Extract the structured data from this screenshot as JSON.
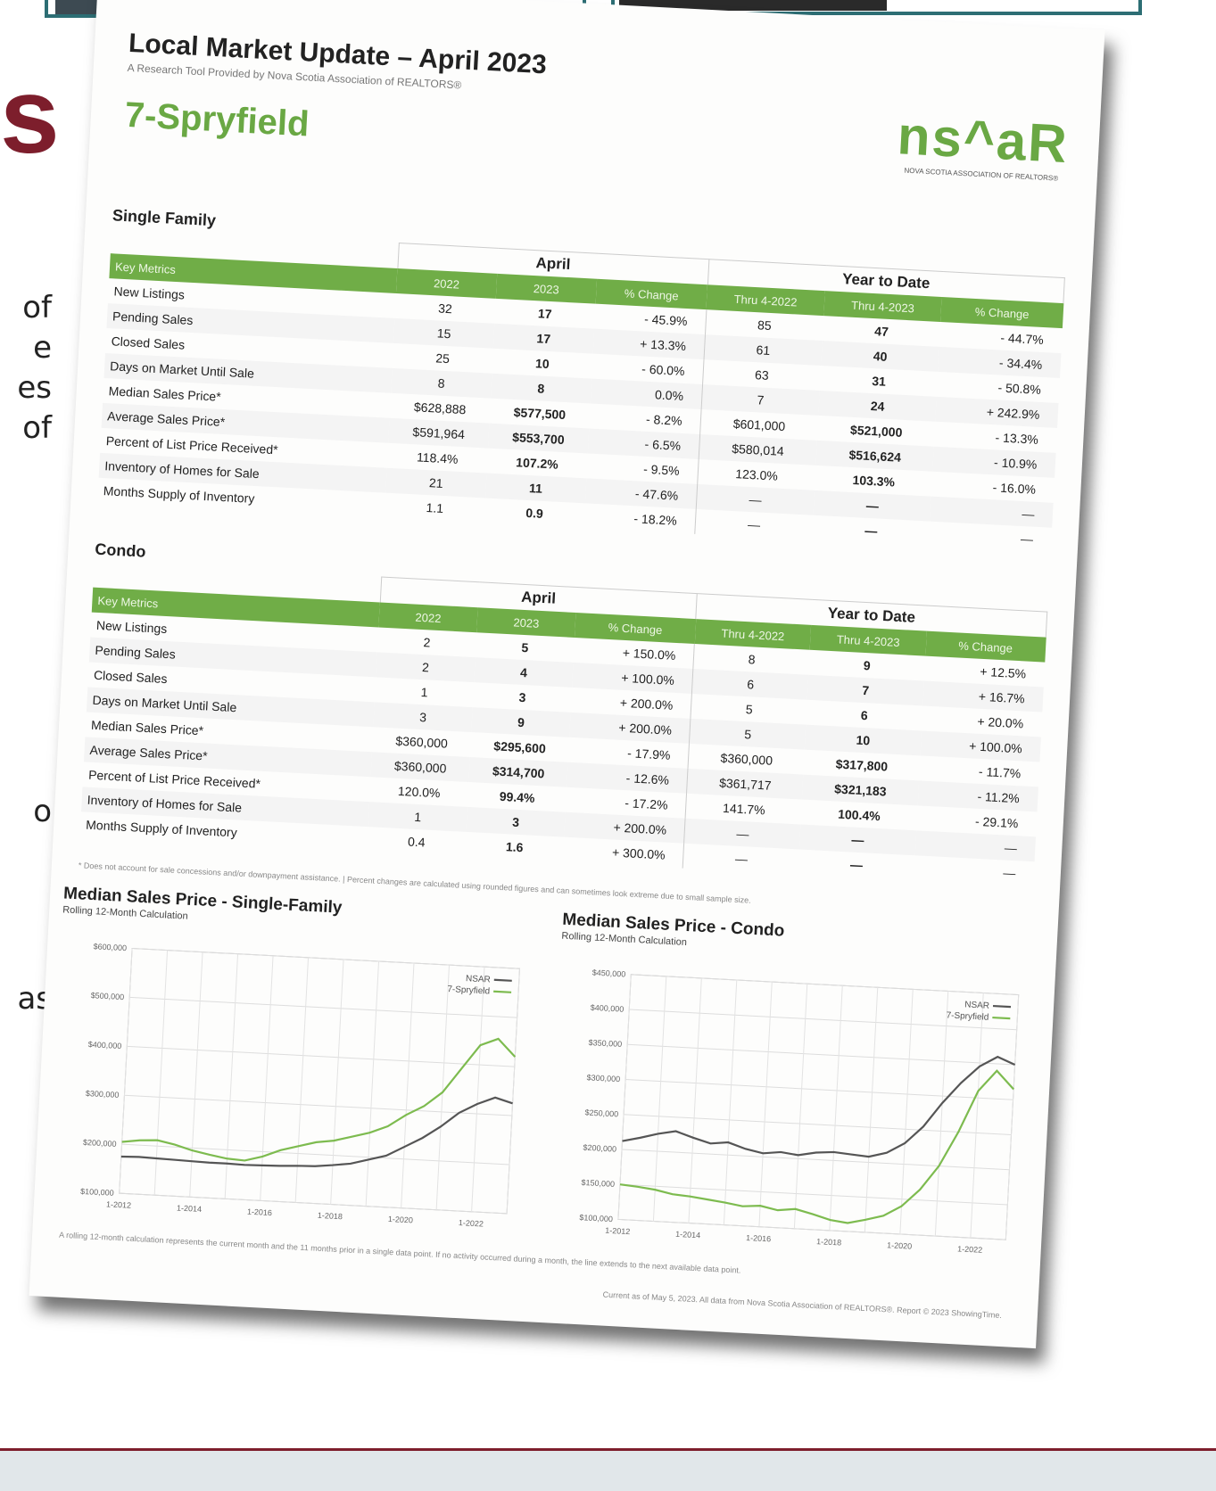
{
  "background": {
    "heading_fragment": "s",
    "text_fragments": [
      "of",
      "e",
      "es",
      "of",
      "o",
      "as"
    ]
  },
  "document": {
    "title": "Local Market Update – April 2023",
    "subtitle": "A Research Tool Provided by Nova Scotia Association of REALTORS®",
    "area": "7-Spryfield",
    "logo": {
      "mark": "ns^aR",
      "caption": "NOVA SCOTIA ASSOCIATION OF REALTORS®"
    },
    "tables": [
      {
        "title": "Single Family",
        "key_label": "Key Metrics",
        "group_labels": [
          "April",
          "Year to Date"
        ],
        "columns": [
          "2022",
          "2023",
          "% Change",
          "Thru 4-2022",
          "Thru 4-2023",
          "% Change"
        ],
        "rows": [
          {
            "label": "New Listings",
            "cells": [
              "32",
              "17",
              "- 45.9%",
              "85",
              "47",
              "- 44.7%"
            ]
          },
          {
            "label": "Pending Sales",
            "cells": [
              "15",
              "17",
              "+ 13.3%",
              "61",
              "40",
              "- 34.4%"
            ]
          },
          {
            "label": "Closed Sales",
            "cells": [
              "25",
              "10",
              "- 60.0%",
              "63",
              "31",
              "- 50.8%"
            ]
          },
          {
            "label": "Days on Market Until Sale",
            "cells": [
              "8",
              "8",
              "0.0%",
              "7",
              "24",
              "+ 242.9%"
            ]
          },
          {
            "label": "Median Sales Price*",
            "cells": [
              "$628,888",
              "$577,500",
              "- 8.2%",
              "$601,000",
              "$521,000",
              "- 13.3%"
            ]
          },
          {
            "label": "Average Sales Price*",
            "cells": [
              "$591,964",
              "$553,700",
              "- 6.5%",
              "$580,014",
              "$516,624",
              "- 10.9%"
            ]
          },
          {
            "label": "Percent of List Price Received*",
            "cells": [
              "118.4%",
              "107.2%",
              "- 9.5%",
              "123.0%",
              "103.3%",
              "- 16.0%"
            ]
          },
          {
            "label": "Inventory of Homes for Sale",
            "cells": [
              "21",
              "11",
              "- 47.6%",
              "—",
              "—",
              "—"
            ]
          },
          {
            "label": "Months Supply of Inventory",
            "cells": [
              "1.1",
              "0.9",
              "- 18.2%",
              "—",
              "—",
              "—"
            ]
          }
        ]
      },
      {
        "title": "Condo",
        "key_label": "Key Metrics",
        "group_labels": [
          "April",
          "Year to Date"
        ],
        "columns": [
          "2022",
          "2023",
          "% Change",
          "Thru 4-2022",
          "Thru 4-2023",
          "% Change"
        ],
        "rows": [
          {
            "label": "New Listings",
            "cells": [
              "2",
              "5",
              "+ 150.0%",
              "8",
              "9",
              "+ 12.5%"
            ]
          },
          {
            "label": "Pending Sales",
            "cells": [
              "2",
              "4",
              "+ 100.0%",
              "6",
              "7",
              "+ 16.7%"
            ]
          },
          {
            "label": "Closed Sales",
            "cells": [
              "1",
              "3",
              "+ 200.0%",
              "5",
              "6",
              "+ 20.0%"
            ]
          },
          {
            "label": "Days on Market Until Sale",
            "cells": [
              "3",
              "9",
              "+ 200.0%",
              "5",
              "10",
              "+ 100.0%"
            ]
          },
          {
            "label": "Median Sales Price*",
            "cells": [
              "$360,000",
              "$295,600",
              "- 17.9%",
              "$360,000",
              "$317,800",
              "- 11.7%"
            ]
          },
          {
            "label": "Average Sales Price*",
            "cells": [
              "$360,000",
              "$314,700",
              "- 12.6%",
              "$361,717",
              "$321,183",
              "- 11.2%"
            ]
          },
          {
            "label": "Percent of List Price Received*",
            "cells": [
              "120.0%",
              "99.4%",
              "- 17.2%",
              "141.7%",
              "100.4%",
              "- 29.1%"
            ]
          },
          {
            "label": "Inventory of Homes for Sale",
            "cells": [
              "1",
              "3",
              "+ 200.0%",
              "—",
              "—",
              "—"
            ]
          },
          {
            "label": "Months Supply of Inventory",
            "cells": [
              "0.4",
              "1.6",
              "+ 300.0%",
              "—",
              "—",
              "—"
            ]
          }
        ]
      }
    ],
    "footnote": "* Does not account for sale concessions and/or downpayment assistance. | Percent changes are calculated using rounded figures and can sometimes look extreme due to small sample size.",
    "charts": [
      {
        "type": "line",
        "title": "Median Sales Price - Single-Family",
        "subtitle": "Rolling 12-Month Calculation",
        "categories": [
          "1-2012",
          null,
          null,
          null,
          "1-2014",
          null,
          null,
          null,
          "1-2016",
          null,
          null,
          null,
          "1-2018",
          null,
          null,
          null,
          "1-2020",
          null,
          null,
          null,
          "1-2022",
          null,
          null
        ],
        "series": [
          {
            "name": "NSAR",
            "color": "#555555",
            "values": [
              175000,
              176000,
              175000,
              174000,
              173000,
              172000,
              172000,
              171000,
              172000,
              173000,
              175000,
              176000,
              180000,
              185000,
              195000,
              205000,
              225000,
              245000,
              270000,
              300000,
              320000,
              335000,
              325000
            ]
          },
          {
            "name": "7-Spryfield",
            "color": "#7dbb4f",
            "values": [
              205000,
              210000,
              212000,
              205000,
              195000,
              188000,
              182000,
              180000,
              190000,
              205000,
              215000,
              225000,
              230000,
              240000,
              250000,
              265000,
              290000,
              310000,
              340000,
              390000,
              440000,
              455000,
              420000
            ]
          }
        ],
        "ylim": [
          100000,
          600000
        ],
        "yticks": [
          {
            "value": 100000,
            "label": "$100,000"
          },
          {
            "value": 200000,
            "label": "$200,000"
          },
          {
            "value": 300000,
            "label": "$300,000"
          },
          {
            "value": 400000,
            "label": "$400,000"
          },
          {
            "value": 500000,
            "label": "$500,000"
          },
          {
            "value": 600000,
            "label": "$600,000"
          }
        ],
        "grid": true
      },
      {
        "type": "line",
        "title": "Median Sales Price - Condo",
        "subtitle": "Rolling 12-Month Calculation",
        "categories": [
          "1-2012",
          null,
          null,
          null,
          "1-2014",
          null,
          null,
          null,
          "1-2016",
          null,
          null,
          null,
          "1-2018",
          null,
          null,
          null,
          "1-2020",
          null,
          null,
          null,
          "1-2022",
          null,
          null
        ],
        "series": [
          {
            "name": "NSAR",
            "color": "#555555",
            "values": [
              212000,
              218000,
              225000,
              230000,
              222000,
              215000,
              218000,
              210000,
              205000,
              208000,
              205000,
              210000,
              212000,
              210000,
              208000,
              215000,
              230000,
              255000,
              290000,
              320000,
              345000,
              360000,
              350000
            ]
          },
          {
            "name": "7-Spryfield",
            "color": "#7dbb4f",
            "values": [
              150000,
              148000,
              145000,
              140000,
              138000,
              135000,
              132000,
              128000,
              130000,
              125000,
              128000,
              122000,
              115000,
              112000,
              118000,
              125000,
              140000,
              165000,
              200000,
              250000,
              310000,
              340000,
              315000
            ]
          }
        ],
        "ylim": [
          100000,
          450000
        ],
        "yticks": [
          {
            "value": 100000,
            "label": "$100,000"
          },
          {
            "value": 150000,
            "label": "$150,000"
          },
          {
            "value": 200000,
            "label": "$200,000"
          },
          {
            "value": 250000,
            "label": "$250,000"
          },
          {
            "value": 300000,
            "label": "$300,000"
          },
          {
            "value": 350000,
            "label": "$350,000"
          },
          {
            "value": 400000,
            "label": "$400,000"
          },
          {
            "value": 450000,
            "label": "$450,000"
          }
        ],
        "grid": true
      }
    ],
    "chart_note": "A rolling 12-month calculation represents the current month and the 11 months prior in a single data point. If no activity occurred during a month, the line extends to the next available data point.",
    "credit": "Current as of May 5, 2023. All data from Nova Scotia Association of REALTORS®. Report © 2023 ShowingTime."
  }
}
